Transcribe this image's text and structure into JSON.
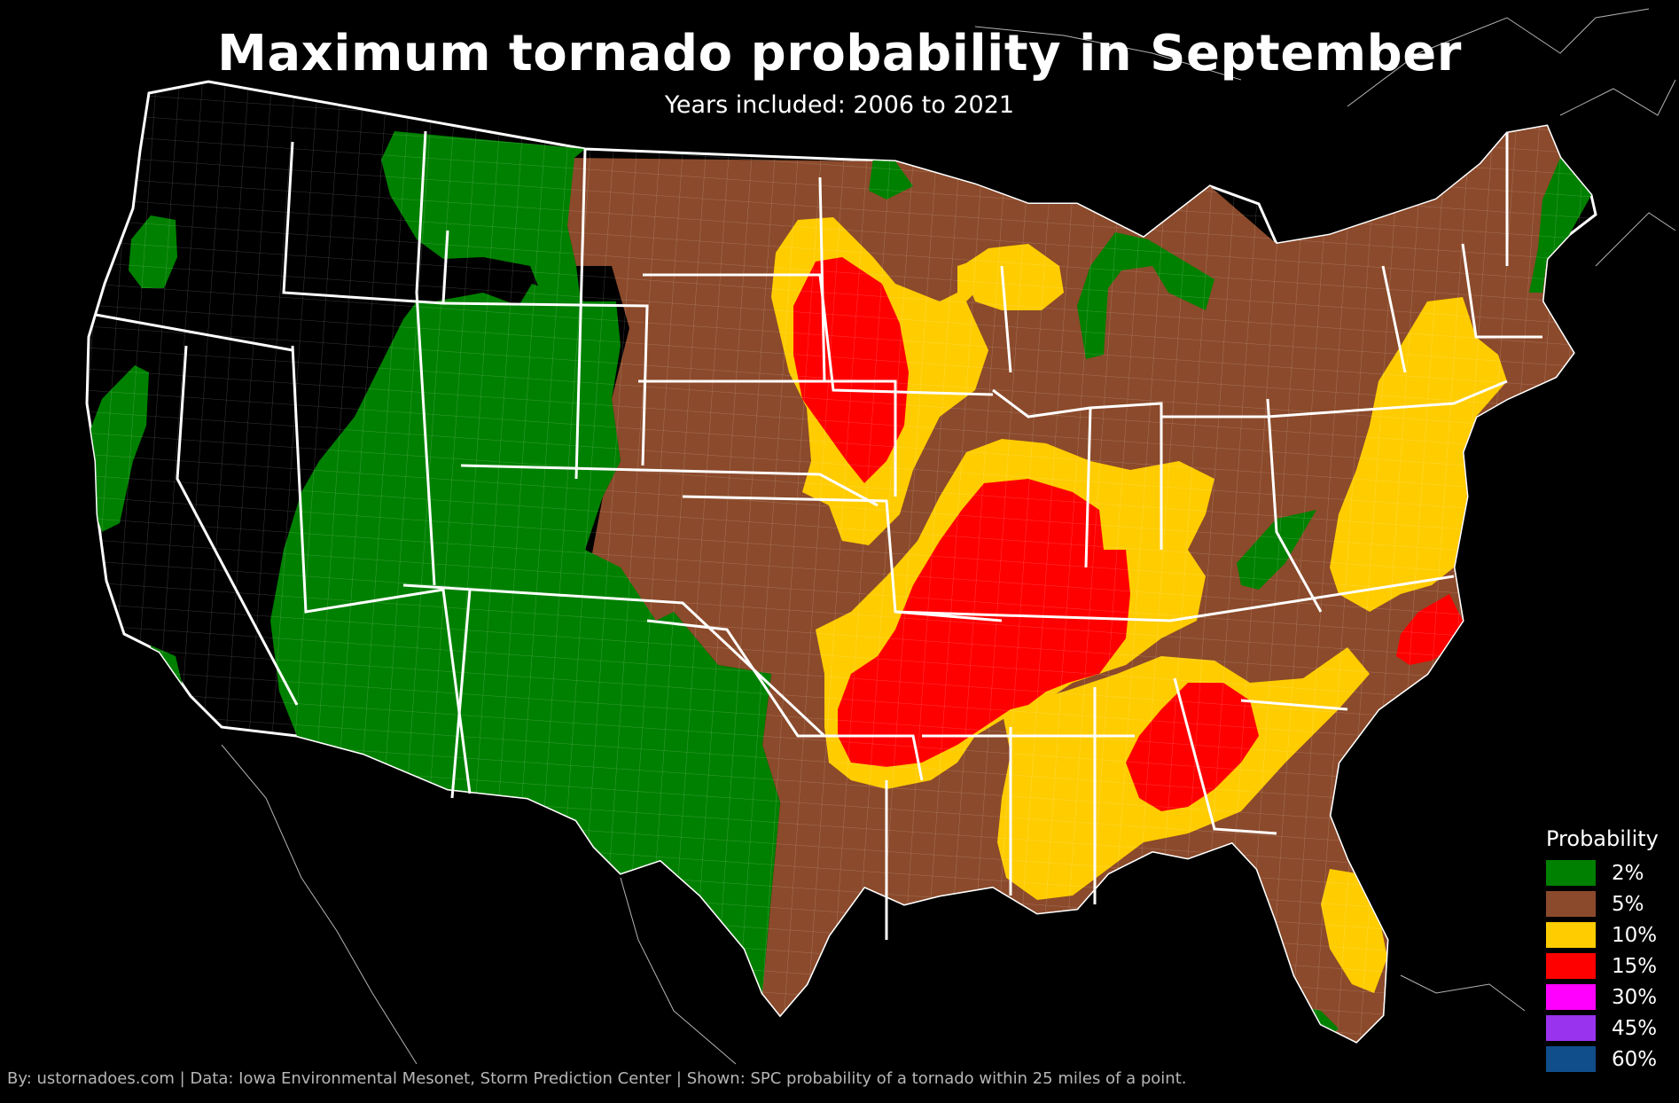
{
  "title": "Maximum tornado probability in September",
  "subtitle": "Years included: 2006 to 2021",
  "legend": {
    "title": "Probability",
    "items": [
      {
        "label": "2%",
        "color": "#008000"
      },
      {
        "label": "5%",
        "color": "#8B4A2B"
      },
      {
        "label": "10%",
        "color": "#FFCC00"
      },
      {
        "label": "15%",
        "color": "#FF0000"
      },
      {
        "label": "30%",
        "color": "#FF00FF"
      },
      {
        "label": "45%",
        "color": "#9933EE"
      },
      {
        "label": "60%",
        "color": "#104E8B"
      }
    ]
  },
  "credit": "By: ustornadoes.com | Data: Iowa Environmental Mesonet, Storm Prediction Center | Shown: SPC probability of a tornado within 25 miles of a point.",
  "colors": {
    "background": "#000000",
    "state_border": "#FFFFFF",
    "county_line": "#FFFFFF"
  }
}
